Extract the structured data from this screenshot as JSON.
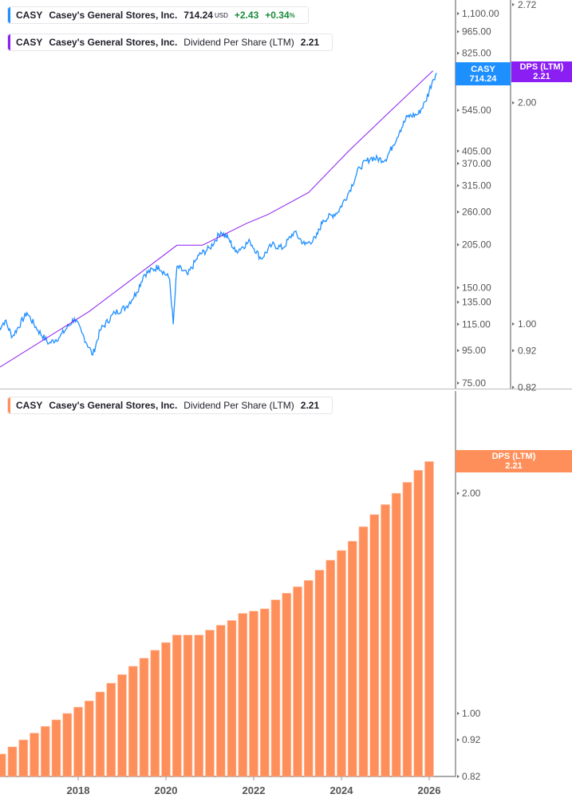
{
  "legend_price": {
    "ticker": "CASY",
    "name": "Casey's General Stores, Inc.",
    "price": "714.24",
    "currency": "USD",
    "change": "+2.43",
    "change_pct": "+0.34",
    "pct_sign": "%",
    "color": "#1e8fff"
  },
  "legend_dps_top": {
    "ticker": "CASY",
    "name": "Casey's General Stores, Inc.",
    "metric": "Dividend Per Share (LTM)",
    "value": "2.21",
    "color": "#8b1ef2"
  },
  "legend_dps_bottom": {
    "ticker": "CASY",
    "name": "Casey's General Stores, Inc.",
    "metric": "Dividend Per Share (LTM)",
    "value": "2.21",
    "color": "#ff8f5a"
  },
  "badges": {
    "price": {
      "line1": "CASY",
      "line2": "714.24",
      "color": "#1e8fff"
    },
    "dps_top": {
      "line1": "DPS (LTM)",
      "line2": "2.21",
      "color": "#8b1ef2"
    },
    "dps_bottom": {
      "line1": "DPS (LTM)",
      "line2": "2.21",
      "color": "#ff8f5a"
    }
  },
  "chart_data": [
    {
      "type": "line",
      "scale": "log",
      "price_axis": {
        "ticks": [
          "1,100.00",
          "965.00",
          "825.00",
          "545.00",
          "405.00",
          "370.00",
          "315.00",
          "260.00",
          "205.00",
          "150.00",
          "135.00",
          "115.00",
          "95.00",
          "75.00"
        ],
        "range": [
          75,
          1100
        ]
      },
      "dps_axis": {
        "ticks": [
          "2.72",
          "2.00",
          "1.00",
          "0.92",
          "0.82"
        ],
        "range": [
          0.82,
          2.72
        ]
      },
      "series": [
        {
          "name": "CASY",
          "color": "#1e8fff",
          "points": [
            [
              "2016-03",
              110
            ],
            [
              "2016-05",
              118
            ],
            [
              "2016-07",
              105
            ],
            [
              "2016-11",
              125
            ],
            [
              "2017-02",
              110
            ],
            [
              "2017-05",
              100
            ],
            [
              "2017-08",
              105
            ],
            [
              "2017-12",
              120
            ],
            [
              "2018-02",
              108
            ],
            [
              "2018-05",
              92
            ],
            [
              "2018-07",
              110
            ],
            [
              "2018-11",
              125
            ],
            [
              "2019-02",
              130
            ],
            [
              "2019-05",
              145
            ],
            [
              "2019-07",
              165
            ],
            [
              "2019-11",
              175
            ],
            [
              "2020-02",
              160
            ],
            [
              "2020-03",
              115
            ],
            [
              "2020-04",
              175
            ],
            [
              "2020-07",
              165
            ],
            [
              "2020-10",
              190
            ],
            [
              "2021-01",
              200
            ],
            [
              "2021-04",
              225
            ],
            [
              "2021-06",
              215
            ],
            [
              "2021-08",
              195
            ],
            [
              "2021-12",
              210
            ],
            [
              "2022-03",
              185
            ],
            [
              "2022-06",
              205
            ],
            [
              "2022-09",
              200
            ],
            [
              "2022-12",
              225
            ],
            [
              "2023-03",
              205
            ],
            [
              "2023-06",
              215
            ],
            [
              "2023-08",
              245
            ],
            [
              "2023-12",
              260
            ],
            [
              "2024-03",
              300
            ],
            [
              "2024-06",
              360
            ],
            [
              "2024-09",
              385
            ],
            [
              "2025-01",
              380
            ],
            [
              "2025-03",
              420
            ],
            [
              "2025-05",
              470
            ],
            [
              "2025-07",
              520
            ],
            [
              "2025-10",
              530
            ],
            [
              "2025-12",
              580
            ],
            [
              "2026-02",
              680
            ],
            [
              "2026-03",
              714.24
            ]
          ]
        },
        {
          "name": "Dividend Per Share (LTM)",
          "color": "#8b1ef2",
          "points": [
            [
              "2016-03",
              0.87
            ],
            [
              "2018-04",
              1.04
            ],
            [
              "2020-04",
              1.28
            ],
            [
              "2020-11",
              1.28
            ],
            [
              "2021-11",
              1.37
            ],
            [
              "2022-05",
              1.41
            ],
            [
              "2023-04",
              1.51
            ],
            [
              "2024-03",
              1.72
            ],
            [
              "2025-02",
              1.94
            ],
            [
              "2026-02",
              2.21
            ]
          ]
        }
      ]
    },
    {
      "type": "bar",
      "scale": "log",
      "name": "Dividend Per Share (LTM)",
      "color": "#ff8f5a",
      "y_axis": {
        "ticks": [
          "2.00",
          "1.00",
          "0.92",
          "0.82"
        ],
        "range": [
          0.82,
          2.21
        ]
      },
      "x_ticks": [
        "2018",
        "2020",
        "2022",
        "2024",
        "2026"
      ],
      "start": "2016-04",
      "frequency": "quarterly",
      "values": [
        0.88,
        0.9,
        0.92,
        0.94,
        0.96,
        0.98,
        1.0,
        1.02,
        1.04,
        1.07,
        1.1,
        1.13,
        1.16,
        1.19,
        1.22,
        1.25,
        1.28,
        1.28,
        1.28,
        1.3,
        1.32,
        1.34,
        1.37,
        1.38,
        1.39,
        1.43,
        1.46,
        1.49,
        1.52,
        1.57,
        1.62,
        1.67,
        1.72,
        1.8,
        1.87,
        1.93,
        2.0,
        2.07,
        2.15,
        2.21
      ]
    }
  ]
}
